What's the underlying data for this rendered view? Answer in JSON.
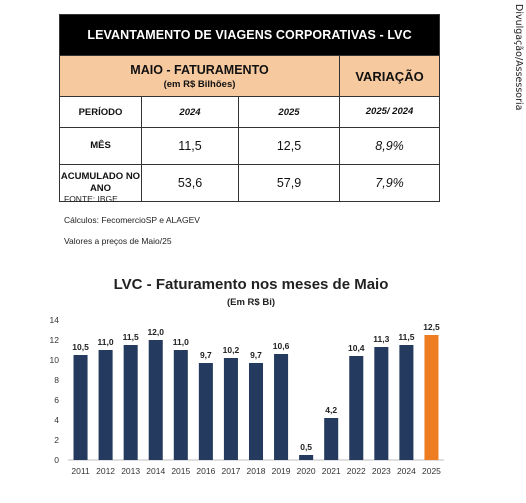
{
  "credit": "Divulgação/Assessoria",
  "table": {
    "title": "LEVANTAMENTO DE VIAGENS CORPORATIVAS - LVC",
    "group_header": "MAIO - FATURAMENTO",
    "group_subheader": "(em R$ Bilhões)",
    "variation_header": "VARIAÇÃO",
    "period_label": "PERÍODO",
    "year_a": "2024",
    "year_b": "2025",
    "variation_period": "2025/ 2024",
    "rows": [
      {
        "label": "MÊS",
        "a": "11,5",
        "b": "12,5",
        "var": "8,9%"
      },
      {
        "label": "ACUMULADO NO ANO",
        "a": "53,6",
        "b": "57,9",
        "var": "7,9%"
      }
    ]
  },
  "notes": [
    "FONTE: IBGE",
    "Cálculos: FecomercioSP e ALAGEV",
    "Valores a preços de Maio/25"
  ],
  "chart_data": {
    "type": "bar",
    "title": "LVC - Faturamento nos meses de Maio",
    "subtitle": "(Em R$ Bi)",
    "categories": [
      "2011",
      "2012",
      "2013",
      "2014",
      "2015",
      "2016",
      "2017",
      "2018",
      "2019",
      "2020",
      "2021",
      "2022",
      "2023",
      "2024",
      "2025"
    ],
    "values": [
      10.5,
      11.0,
      11.5,
      12.0,
      11.0,
      9.7,
      10.2,
      9.7,
      10.6,
      0.5,
      4.2,
      10.4,
      11.3,
      11.5,
      12.5
    ],
    "value_labels": [
      "10,5",
      "11,0",
      "11,5",
      "12,0",
      "11,0",
      "9,7",
      "10,2",
      "9,7",
      "10,6",
      "0,5",
      "4,2",
      "10,4",
      "11,3",
      "11,5",
      "12,5"
    ],
    "ylim": [
      0,
      14
    ],
    "yticks": [
      0,
      2,
      4,
      6,
      8,
      10,
      12,
      14
    ],
    "grid": false,
    "bar_color": "#243a5e",
    "highlight_color": "#ee7d22",
    "highlight_category": "2025"
  }
}
